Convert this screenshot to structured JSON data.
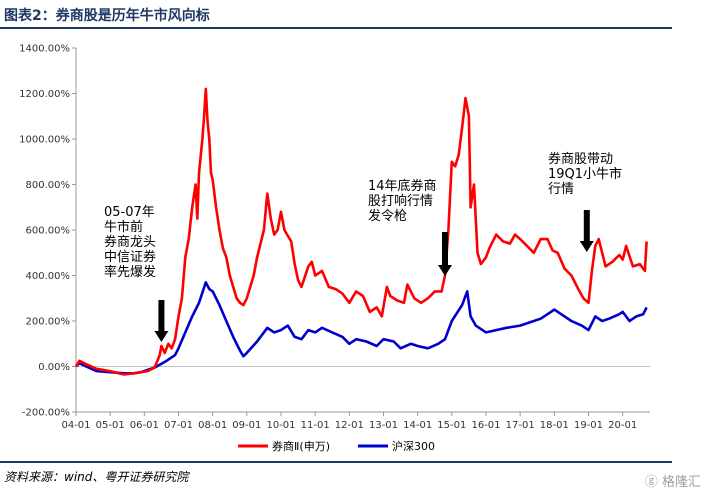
{
  "header": {
    "title": "图表2：券商股是历年牛市风向标"
  },
  "footer": {
    "source": "资料来源：wind、粤开证券研究院",
    "watermark": "格隆汇"
  },
  "colors": {
    "broker": "#ff0000",
    "hs300": "#0000cc",
    "header": "#1f3864"
  },
  "chart_data": {
    "type": "line",
    "title": "券商股是历年牛市风向标",
    "xlabel": "",
    "ylabel": "",
    "x_range": [
      2004.0,
      2020.8
    ],
    "ylim": [
      -200,
      1400
    ],
    "y_ticks": [
      -200,
      0,
      200,
      400,
      600,
      800,
      1000,
      1200,
      1400
    ],
    "y_tick_labels": [
      "-200.00%",
      "0.00%",
      "200.00%",
      "400.00%",
      "600.00%",
      "800.00%",
      "1000.00%",
      "1200.00%",
      "1400.00%"
    ],
    "x_ticks": [
      2004,
      2005,
      2006,
      2007,
      2008,
      2009,
      2010,
      2011,
      2012,
      2013,
      2014,
      2015,
      2016,
      2017,
      2018,
      2019,
      2020
    ],
    "x_tick_labels": [
      "04-01",
      "05-01",
      "06-01",
      "07-01",
      "08-01",
      "09-01",
      "10-01",
      "11-01",
      "12-01",
      "13-01",
      "14-01",
      "15-01",
      "16-01",
      "17-01",
      "18-01",
      "19-01",
      "20-01"
    ],
    "legend": [
      "券商Ⅱ(申万)",
      "沪深300"
    ],
    "legend_position": "bottom",
    "series": [
      {
        "name": "券商Ⅱ(申万)",
        "color": "#ff0000",
        "points": [
          [
            2004.0,
            0
          ],
          [
            2004.1,
            25
          ],
          [
            2004.3,
            10
          ],
          [
            2004.6,
            -10
          ],
          [
            2005.0,
            -20
          ],
          [
            2005.4,
            -35
          ],
          [
            2005.7,
            -30
          ],
          [
            2005.9,
            -25
          ],
          [
            2006.1,
            -20
          ],
          [
            2006.3,
            -5
          ],
          [
            2006.45,
            50
          ],
          [
            2006.5,
            90
          ],
          [
            2006.6,
            60
          ],
          [
            2006.7,
            100
          ],
          [
            2006.8,
            80
          ],
          [
            2006.9,
            120
          ],
          [
            2007.0,
            220
          ],
          [
            2007.1,
            300
          ],
          [
            2007.2,
            480
          ],
          [
            2007.3,
            560
          ],
          [
            2007.4,
            700
          ],
          [
            2007.5,
            800
          ],
          [
            2007.55,
            650
          ],
          [
            2007.6,
            850
          ],
          [
            2007.7,
            1000
          ],
          [
            2007.75,
            1100
          ],
          [
            2007.8,
            1220
          ],
          [
            2007.85,
            1080
          ],
          [
            2007.9,
            1000
          ],
          [
            2007.95,
            850
          ],
          [
            2008.0,
            820
          ],
          [
            2008.1,
            700
          ],
          [
            2008.2,
            600
          ],
          [
            2008.3,
            520
          ],
          [
            2008.4,
            480
          ],
          [
            2008.5,
            400
          ],
          [
            2008.6,
            350
          ],
          [
            2008.7,
            300
          ],
          [
            2008.8,
            280
          ],
          [
            2008.9,
            270
          ],
          [
            2009.0,
            300
          ],
          [
            2009.2,
            400
          ],
          [
            2009.3,
            480
          ],
          [
            2009.5,
            600
          ],
          [
            2009.6,
            760
          ],
          [
            2009.7,
            650
          ],
          [
            2009.8,
            580
          ],
          [
            2009.9,
            600
          ],
          [
            2010.0,
            680
          ],
          [
            2010.1,
            600
          ],
          [
            2010.3,
            550
          ],
          [
            2010.4,
            450
          ],
          [
            2010.5,
            380
          ],
          [
            2010.6,
            350
          ],
          [
            2010.8,
            440
          ],
          [
            2010.9,
            460
          ],
          [
            2011.0,
            400
          ],
          [
            2011.2,
            420
          ],
          [
            2011.4,
            350
          ],
          [
            2011.6,
            340
          ],
          [
            2011.8,
            320
          ],
          [
            2012.0,
            280
          ],
          [
            2012.2,
            330
          ],
          [
            2012.4,
            310
          ],
          [
            2012.6,
            240
          ],
          [
            2012.8,
            260
          ],
          [
            2012.95,
            220
          ],
          [
            2013.1,
            350
          ],
          [
            2013.2,
            310
          ],
          [
            2013.4,
            290
          ],
          [
            2013.6,
            280
          ],
          [
            2013.7,
            360
          ],
          [
            2013.9,
            300
          ],
          [
            2014.1,
            280
          ],
          [
            2014.3,
            300
          ],
          [
            2014.5,
            330
          ],
          [
            2014.7,
            330
          ],
          [
            2014.8,
            400
          ],
          [
            2014.9,
            600
          ],
          [
            2015.0,
            900
          ],
          [
            2015.1,
            880
          ],
          [
            2015.2,
            930
          ],
          [
            2015.3,
            1050
          ],
          [
            2015.4,
            1180
          ],
          [
            2015.5,
            1100
          ],
          [
            2015.55,
            700
          ],
          [
            2015.65,
            800
          ],
          [
            2015.75,
            500
          ],
          [
            2015.85,
            450
          ],
          [
            2016.0,
            480
          ],
          [
            2016.1,
            520
          ],
          [
            2016.3,
            580
          ],
          [
            2016.5,
            550
          ],
          [
            2016.7,
            540
          ],
          [
            2016.85,
            580
          ],
          [
            2017.0,
            560
          ],
          [
            2017.2,
            530
          ],
          [
            2017.4,
            500
          ],
          [
            2017.6,
            560
          ],
          [
            2017.8,
            560
          ],
          [
            2017.95,
            510
          ],
          [
            2018.1,
            500
          ],
          [
            2018.3,
            430
          ],
          [
            2018.5,
            400
          ],
          [
            2018.7,
            340
          ],
          [
            2018.85,
            300
          ],
          [
            2019.0,
            280
          ],
          [
            2019.1,
            420
          ],
          [
            2019.2,
            530
          ],
          [
            2019.3,
            560
          ],
          [
            2019.5,
            440
          ],
          [
            2019.7,
            460
          ],
          [
            2019.9,
            490
          ],
          [
            2020.0,
            470
          ],
          [
            2020.1,
            530
          ],
          [
            2020.3,
            440
          ],
          [
            2020.5,
            450
          ],
          [
            2020.65,
            420
          ],
          [
            2020.7,
            550
          ]
        ]
      },
      {
        "name": "沪深300",
        "color": "#0000cc",
        "points": [
          [
            2004.0,
            0
          ],
          [
            2004.1,
            15
          ],
          [
            2004.3,
            0
          ],
          [
            2004.6,
            -20
          ],
          [
            2005.0,
            -25
          ],
          [
            2005.4,
            -30
          ],
          [
            2005.7,
            -30
          ],
          [
            2005.9,
            -25
          ],
          [
            2006.1,
            -15
          ],
          [
            2006.3,
            -5
          ],
          [
            2006.6,
            20
          ],
          [
            2006.9,
            50
          ],
          [
            2007.0,
            80
          ],
          [
            2007.2,
            150
          ],
          [
            2007.4,
            220
          ],
          [
            2007.6,
            280
          ],
          [
            2007.8,
            370
          ],
          [
            2007.9,
            340
          ],
          [
            2008.0,
            330
          ],
          [
            2008.2,
            270
          ],
          [
            2008.4,
            200
          ],
          [
            2008.6,
            130
          ],
          [
            2008.8,
            70
          ],
          [
            2008.9,
            45
          ],
          [
            2009.0,
            60
          ],
          [
            2009.3,
            110
          ],
          [
            2009.6,
            170
          ],
          [
            2009.8,
            150
          ],
          [
            2010.0,
            160
          ],
          [
            2010.2,
            180
          ],
          [
            2010.4,
            130
          ],
          [
            2010.6,
            120
          ],
          [
            2010.8,
            160
          ],
          [
            2011.0,
            150
          ],
          [
            2011.2,
            170
          ],
          [
            2011.5,
            150
          ],
          [
            2011.8,
            130
          ],
          [
            2012.0,
            100
          ],
          [
            2012.2,
            120
          ],
          [
            2012.5,
            110
          ],
          [
            2012.8,
            90
          ],
          [
            2013.0,
            120
          ],
          [
            2013.3,
            110
          ],
          [
            2013.5,
            80
          ],
          [
            2013.8,
            100
          ],
          [
            2014.0,
            90
          ],
          [
            2014.3,
            80
          ],
          [
            2014.6,
            100
          ],
          [
            2014.8,
            120
          ],
          [
            2015.0,
            200
          ],
          [
            2015.3,
            270
          ],
          [
            2015.45,
            330
          ],
          [
            2015.55,
            220
          ],
          [
            2015.7,
            180
          ],
          [
            2016.0,
            150
          ],
          [
            2016.3,
            160
          ],
          [
            2016.6,
            170
          ],
          [
            2017.0,
            180
          ],
          [
            2017.3,
            195
          ],
          [
            2017.6,
            210
          ],
          [
            2017.9,
            240
          ],
          [
            2018.0,
            250
          ],
          [
            2018.2,
            230
          ],
          [
            2018.5,
            200
          ],
          [
            2018.8,
            180
          ],
          [
            2019.0,
            160
          ],
          [
            2019.2,
            220
          ],
          [
            2019.4,
            200
          ],
          [
            2019.6,
            210
          ],
          [
            2019.9,
            230
          ],
          [
            2020.0,
            240
          ],
          [
            2020.2,
            200
          ],
          [
            2020.4,
            220
          ],
          [
            2020.6,
            230
          ],
          [
            2020.7,
            260
          ]
        ]
      }
    ],
    "annotations": [
      {
        "lines": [
          "05-07年",
          "牛市前",
          "券商龙头",
          "中信证券",
          "率先爆发"
        ],
        "arrow_x": 2006.5
      },
      {
        "lines": [
          "14年底券商",
          "股打响行情",
          "发令枪"
        ],
        "arrow_x": 2014.8
      },
      {
        "lines": [
          "券商股带动",
          "19Q1小牛市",
          "行情"
        ],
        "arrow_x": 2018.95
      }
    ]
  }
}
